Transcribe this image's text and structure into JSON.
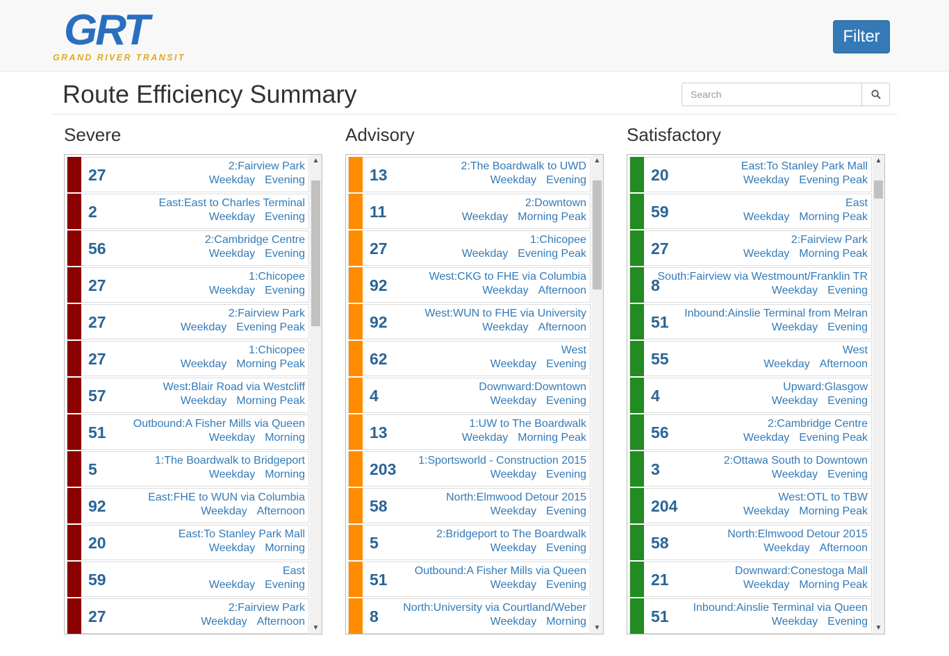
{
  "header": {
    "logo_text": "GRT",
    "logo_subtitle": "GRAND RIVER TRANSIT",
    "filter_label": "Filter"
  },
  "page_title": "Route Efficiency Summary",
  "search": {
    "placeholder": "Search",
    "icon": "search-icon"
  },
  "colors": {
    "severe": "#8b0000",
    "advisory": "#ff8c00",
    "satisfactory": "#228b22",
    "link": "#337ab7",
    "brand": "#2a6fbf"
  },
  "columns": [
    {
      "title": "Severe",
      "scroll_thumb_fraction": {
        "start": 0.03,
        "end": 0.35
      },
      "items": [
        {
          "route": "27",
          "name": "2:Fairview Park",
          "day": "Weekday",
          "period": "Evening"
        },
        {
          "route": "2",
          "name": "East:East to Charles Terminal",
          "day": "Weekday",
          "period": "Evening"
        },
        {
          "route": "56",
          "name": "2:Cambridge Centre",
          "day": "Weekday",
          "period": "Evening"
        },
        {
          "route": "27",
          "name": "1:Chicopee",
          "day": "Weekday",
          "period": "Evening"
        },
        {
          "route": "27",
          "name": "2:Fairview Park",
          "day": "Weekday",
          "period": "Evening Peak"
        },
        {
          "route": "27",
          "name": "1:Chicopee",
          "day": "Weekday",
          "period": "Morning Peak"
        },
        {
          "route": "57",
          "name": "West:Blair Road via Westcliff",
          "day": "Weekday",
          "period": "Morning Peak"
        },
        {
          "route": "51",
          "name": "Outbound:A Fisher Mills via Queen",
          "day": "Weekday",
          "period": "Morning"
        },
        {
          "route": "5",
          "name": "1:The Boardwalk to Bridgeport",
          "day": "Weekday",
          "period": "Morning"
        },
        {
          "route": "92",
          "name": "East:FHE to WUN via Columbia",
          "day": "Weekday",
          "period": "Afternoon"
        },
        {
          "route": "20",
          "name": "East:To Stanley Park Mall",
          "day": "Weekday",
          "period": "Morning"
        },
        {
          "route": "59",
          "name": "East",
          "day": "Weekday",
          "period": "Evening"
        },
        {
          "route": "27",
          "name": "2:Fairview Park",
          "day": "Weekday",
          "period": "Afternoon"
        }
      ]
    },
    {
      "title": "Advisory",
      "scroll_thumb_fraction": {
        "start": 0.03,
        "end": 0.27
      },
      "items": [
        {
          "route": "13",
          "name": "2:The Boardwalk to UWD",
          "day": "Weekday",
          "period": "Evening"
        },
        {
          "route": "11",
          "name": "2:Downtown",
          "day": "Weekday",
          "period": "Morning Peak"
        },
        {
          "route": "27",
          "name": "1:Chicopee",
          "day": "Weekday",
          "period": "Evening Peak"
        },
        {
          "route": "92",
          "name": "West:CKG to FHE via Columbia",
          "day": "Weekday",
          "period": "Afternoon"
        },
        {
          "route": "92",
          "name": "West:WUN to FHE via University",
          "day": "Weekday",
          "period": "Afternoon"
        },
        {
          "route": "62",
          "name": "West",
          "day": "Weekday",
          "period": "Evening"
        },
        {
          "route": "4",
          "name": "Downward:Downtown",
          "day": "Weekday",
          "period": "Evening"
        },
        {
          "route": "13",
          "name": "1:UW to The Boardwalk",
          "day": "Weekday",
          "period": "Morning Peak"
        },
        {
          "route": "203",
          "name": "1:Sportsworld - Construction 2015",
          "day": "Weekday",
          "period": "Evening"
        },
        {
          "route": "58",
          "name": "North:Elmwood Detour 2015",
          "day": "Weekday",
          "period": "Evening"
        },
        {
          "route": "5",
          "name": "2:Bridgeport to The Boardwalk",
          "day": "Weekday",
          "period": "Evening"
        },
        {
          "route": "51",
          "name": "Outbound:A Fisher Mills via Queen",
          "day": "Weekday",
          "period": "Evening"
        },
        {
          "route": "8",
          "name": "North:University via Courtland/Weber",
          "day": "Weekday",
          "period": "Morning"
        }
      ]
    },
    {
      "title": "Satisfactory",
      "scroll_thumb_fraction": {
        "start": 0.03,
        "end": 0.07
      },
      "items": [
        {
          "route": "20",
          "name": "East:To Stanley Park Mall",
          "day": "Weekday",
          "period": "Evening Peak"
        },
        {
          "route": "59",
          "name": "East",
          "day": "Weekday",
          "period": "Morning Peak"
        },
        {
          "route": "27",
          "name": "2:Fairview Park",
          "day": "Weekday",
          "period": "Morning Peak"
        },
        {
          "route": "8",
          "name": "South:Fairview via Westmount/Franklin TR",
          "day": "Weekday",
          "period": "Evening"
        },
        {
          "route": "51",
          "name": "Inbound:Ainslie Terminal from Melran",
          "day": "Weekday",
          "period": "Evening"
        },
        {
          "route": "55",
          "name": "West",
          "day": "Weekday",
          "period": "Afternoon"
        },
        {
          "route": "4",
          "name": "Upward:Glasgow",
          "day": "Weekday",
          "period": "Evening"
        },
        {
          "route": "56",
          "name": "2:Cambridge Centre",
          "day": "Weekday",
          "period": "Evening Peak"
        },
        {
          "route": "3",
          "name": "2:Ottawa South to Downtown",
          "day": "Weekday",
          "period": "Evening"
        },
        {
          "route": "204",
          "name": "West:OTL to TBW",
          "day": "Weekday",
          "period": "Morning Peak"
        },
        {
          "route": "58",
          "name": "North:Elmwood Detour 2015",
          "day": "Weekday",
          "period": "Afternoon"
        },
        {
          "route": "21",
          "name": "Downward:Conestoga Mall",
          "day": "Weekday",
          "period": "Morning Peak"
        },
        {
          "route": "51",
          "name": "Inbound:Ainslie Terminal via Queen",
          "day": "Weekday",
          "period": "Evening"
        }
      ]
    }
  ]
}
